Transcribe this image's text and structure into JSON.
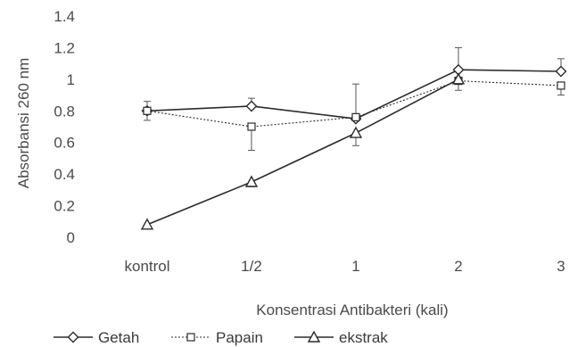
{
  "chart_data": {
    "type": "line",
    "categories": [
      "kontrol",
      "1/2",
      "1",
      "2",
      "3"
    ],
    "title": "",
    "xlabel": "Konsentrasi Antibakteri (kali)",
    "ylabel": "Absorbansi 260 nm",
    "ylim": [
      0,
      1.4
    ],
    "yticks": [
      "0",
      "0.2",
      "0.4",
      "0.6",
      "0.8",
      "1",
      "1.2",
      "1.4"
    ],
    "grid": false,
    "legend_position": "bottom",
    "series": [
      {
        "name": "Getah",
        "marker": "diamond",
        "line_style": "solid",
        "values": [
          0.8,
          0.83,
          0.75,
          1.06,
          1.05
        ],
        "error_upper": [
          0.06,
          0.05,
          0.0,
          0.14,
          0.08
        ],
        "error_lower": [
          0.0,
          0.0,
          0.0,
          0.0,
          0.0
        ]
      },
      {
        "name": "Papain",
        "marker": "square",
        "line_style": "dotted",
        "values": [
          0.8,
          0.7,
          0.76,
          0.99,
          0.96
        ],
        "error_upper": [
          0.0,
          0.0,
          0.21,
          0.0,
          0.0
        ],
        "error_lower": [
          0.06,
          0.15,
          0.0,
          0.06,
          0.06
        ]
      },
      {
        "name": "ekstrak",
        "marker": "triangle",
        "line_style": "solid",
        "values": [
          0.08,
          0.35,
          0.66,
          1.0,
          null
        ],
        "error_upper": [
          0.0,
          0.0,
          0.0,
          0.0,
          0.0
        ],
        "error_lower": [
          0.0,
          0.03,
          0.08,
          0.0,
          0.0
        ]
      }
    ],
    "colors": {
      "line": "#2b2b2b",
      "text": "#4a4a4a"
    }
  }
}
